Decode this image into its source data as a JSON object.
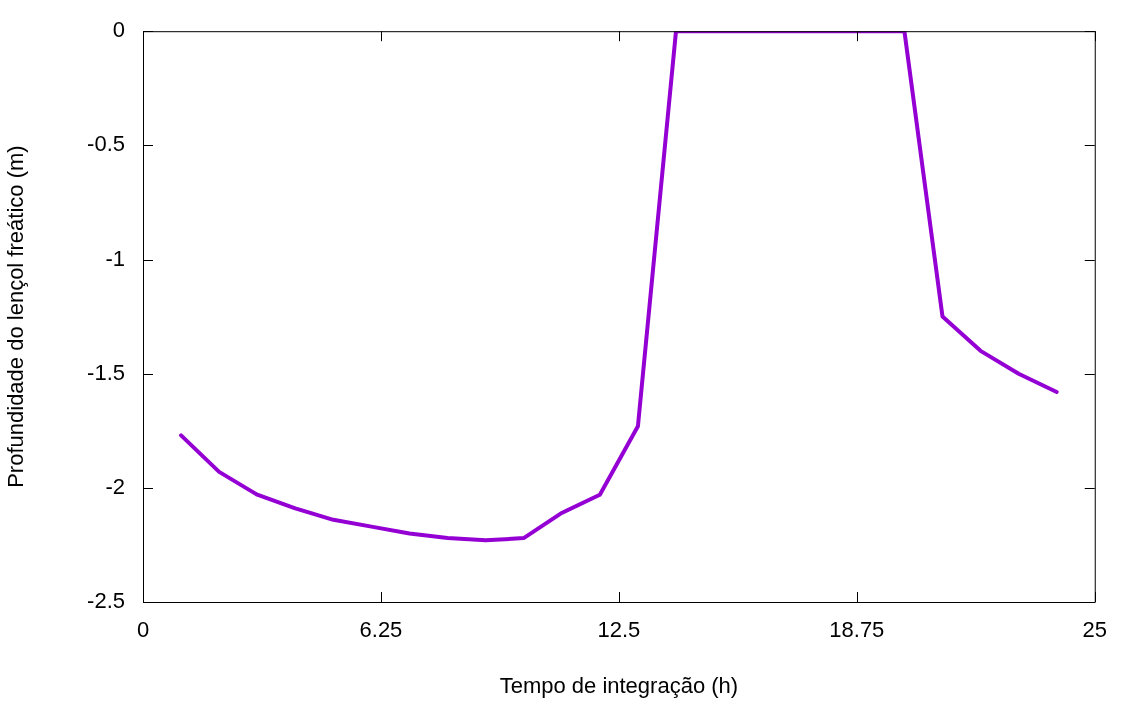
{
  "chart_data": {
    "type": "line",
    "xlabel": "Tempo de integração (h)",
    "ylabel": "Profundidade do lençol freático (m)",
    "x": [
      1,
      2,
      3,
      4,
      5,
      6,
      7,
      8,
      9,
      10,
      11,
      12,
      13,
      14,
      15,
      16,
      17,
      18,
      19,
      20,
      21,
      22,
      23,
      24
    ],
    "series": [
      {
        "color": "#9400d3",
        "values": [
          -1.77,
          -1.93,
          -2.03,
          -2.09,
          -2.14,
          -2.17,
          -2.2,
          -2.22,
          -2.23,
          -2.22,
          -2.11,
          -2.03,
          -1.73,
          0,
          0,
          0,
          0,
          0,
          0,
          0,
          -1.25,
          -1.4,
          -1.5,
          -1.58
        ]
      }
    ],
    "xlim": [
      0,
      25
    ],
    "xticks": [
      0,
      6.25,
      12.5,
      18.75,
      25
    ],
    "ylim": [
      -2.5,
      0
    ],
    "yticks": [
      -2.5,
      -2,
      -1.5,
      -1,
      -0.5,
      0
    ],
    "grid": false,
    "legend": false,
    "marker": "none",
    "line_style": "solid"
  }
}
